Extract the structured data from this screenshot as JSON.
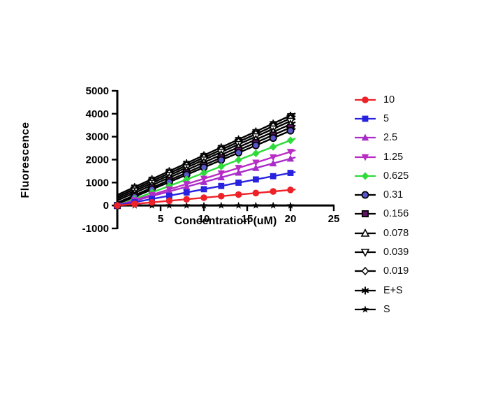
{
  "chart_data": {
    "type": "scatter",
    "title": "",
    "xlabel": "Concentration (uM)",
    "ylabel": "Fluorescence",
    "xlim": [
      0,
      25
    ],
    "ylim": [
      -1000,
      5000
    ],
    "xticks": [
      5,
      10,
      15,
      20,
      25
    ],
    "yticks": [
      -1000,
      0,
      1000,
      2000,
      3000,
      4000,
      5000
    ],
    "grid": false,
    "legend_position": "right",
    "line_extends_to_x": 20.5,
    "series": [
      {
        "name": "10",
        "marker": "circle",
        "marker_color": "#EE2128",
        "line_color": "#EE2128",
        "slope": 34,
        "intercept": 0,
        "error": 0,
        "x": [
          0,
          2,
          4,
          6,
          8,
          10,
          12,
          14,
          16,
          18,
          20
        ],
        "values": [
          0,
          68,
          136,
          204,
          272,
          340,
          408,
          476,
          544,
          612,
          680
        ]
      },
      {
        "name": "5",
        "marker": "square",
        "marker_color": "#2722DE",
        "line_color": "#2722DE",
        "slope": 71,
        "intercept": 0,
        "error": 0,
        "x": [
          0,
          2,
          4,
          6,
          8,
          10,
          12,
          14,
          16,
          18,
          20
        ],
        "values": [
          0,
          142,
          284,
          426,
          568,
          710,
          852,
          994,
          1136,
          1278,
          1420
        ]
      },
      {
        "name": "2.5",
        "marker": "triangle-up",
        "marker_color": "#A92CC9",
        "line_color": "#A92CC9",
        "slope": 102,
        "intercept": 0,
        "error": 0,
        "x": [
          0,
          2,
          4,
          6,
          8,
          10,
          12,
          14,
          16,
          18,
          20
        ],
        "values": [
          0,
          204,
          408,
          612,
          816,
          1020,
          1224,
          1428,
          1632,
          1836,
          2040
        ]
      },
      {
        "name": "1.25",
        "marker": "triangle-down",
        "marker_color": "#B92CC4",
        "line_color": "#B92CC4",
        "slope": 117,
        "intercept": 0,
        "error": 0,
        "x": [
          0,
          2,
          4,
          6,
          8,
          10,
          12,
          14,
          16,
          18,
          20
        ],
        "values": [
          0,
          234,
          468,
          702,
          936,
          1170,
          1404,
          1638,
          1872,
          2106,
          2340
        ]
      },
      {
        "name": "0.625",
        "marker": "diamond",
        "marker_color": "#2EDB3A",
        "line_color": "#2EDB3A",
        "slope": 142,
        "intercept": 0,
        "error": 0,
        "x": [
          0,
          2,
          4,
          6,
          8,
          10,
          12,
          14,
          16,
          18,
          20
        ],
        "values": [
          0,
          284,
          568,
          852,
          1136,
          1420,
          1704,
          1988,
          2272,
          2556,
          2840
        ]
      },
      {
        "name": "0.31",
        "marker": "circle-outline",
        "marker_color": "#5A57CE",
        "line_color": "#000000",
        "slope": 160,
        "intercept": 60,
        "error": 90,
        "x": [
          0,
          2,
          4,
          6,
          8,
          10,
          12,
          14,
          16,
          18,
          20
        ],
        "values": [
          0,
          380,
          700,
          1020,
          1340,
          1660,
          1980,
          2300,
          2620,
          2940,
          3260
        ]
      },
      {
        "name": "0.156",
        "marker": "square-outline",
        "marker_color": "#5F1264",
        "line_color": "#000000",
        "slope": 164,
        "intercept": 120,
        "error": 90,
        "x": [
          0,
          2,
          4,
          6,
          8,
          10,
          12,
          14,
          16,
          18,
          20
        ],
        "values": [
          0,
          448,
          776,
          1104,
          1432,
          1760,
          2088,
          2416,
          2744,
          3072,
          3400
        ]
      },
      {
        "name": "0.078",
        "marker": "triangle-up-open",
        "marker_color": "#ffffff",
        "line_color": "#000000",
        "slope": 166,
        "intercept": 220,
        "error": 90,
        "x": [
          2,
          4,
          6,
          8,
          10,
          12,
          14,
          16,
          18,
          20
        ],
        "values": [
          552,
          884,
          1216,
          1548,
          1880,
          2212,
          2544,
          2876,
          3208,
          3540
        ]
      },
      {
        "name": "0.039",
        "marker": "triangle-down-open",
        "marker_color": "#ffffff",
        "line_color": "#000000",
        "slope": 169,
        "intercept": 300,
        "error": 90,
        "x": [
          2,
          4,
          6,
          8,
          10,
          12,
          14,
          16,
          18,
          20
        ],
        "values": [
          638,
          976,
          1314,
          1652,
          1990,
          2328,
          2666,
          3004,
          3342,
          3680
        ]
      },
      {
        "name": "0.019",
        "marker": "diamond-open",
        "marker_color": "#ffffff",
        "line_color": "#000000",
        "slope": 171,
        "intercept": 380,
        "error": 90,
        "x": [
          2,
          4,
          6,
          8,
          10,
          12,
          14,
          16,
          18,
          20
        ],
        "values": [
          722,
          1064,
          1406,
          1748,
          2090,
          2432,
          2774,
          3116,
          3458,
          3800
        ]
      },
      {
        "name": "E+S",
        "marker": "asterisk",
        "marker_color": "#000000",
        "line_color": "#000000",
        "slope": 173,
        "intercept": 460,
        "error": 90,
        "x": [
          2,
          4,
          6,
          8,
          10,
          12,
          14,
          16,
          18,
          20
        ],
        "values": [
          806,
          1152,
          1498,
          1844,
          2190,
          2536,
          2882,
          3228,
          3574,
          3920
        ]
      },
      {
        "name": "S",
        "marker": "star",
        "marker_color": "#000000",
        "line_color": "#000000",
        "slope": 0,
        "intercept": 0,
        "error": 0,
        "x": [
          0,
          2,
          4,
          6,
          8,
          10,
          12,
          14,
          16,
          18,
          20
        ],
        "values": [
          0,
          0,
          0,
          0,
          0,
          0,
          0,
          0,
          0,
          0,
          0
        ]
      }
    ]
  },
  "colors": {
    "axis": "#000000",
    "background": "#ffffff",
    "text": "#000000"
  }
}
